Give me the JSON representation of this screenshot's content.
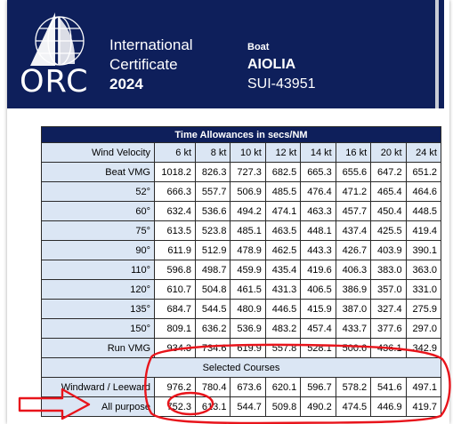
{
  "header": {
    "brand": "ORC",
    "cert_line1": "International",
    "cert_line2": "Certificate",
    "year": "2024",
    "boat_label": "Boat",
    "boat_name": "AIOLIA",
    "sail_number": "SUI-43951",
    "bg_color": "#0e1f5b"
  },
  "table": {
    "title": "Time Allowances in secs/NM",
    "wind_label": "Wind Velocity",
    "wind_speeds": [
      "6 kt",
      "8 kt",
      "10 kt",
      "12 kt",
      "14 kt",
      "16 kt",
      "20 kt",
      "24 kt"
    ],
    "rows": [
      {
        "label": "Beat VMG",
        "values": [
          "1018.2",
          "826.3",
          "727.3",
          "682.5",
          "665.3",
          "655.6",
          "647.2",
          "651.2"
        ]
      },
      {
        "label": "52°",
        "values": [
          "666.3",
          "557.7",
          "506.9",
          "485.5",
          "476.4",
          "471.2",
          "465.4",
          "464.6"
        ]
      },
      {
        "label": "60°",
        "values": [
          "632.4",
          "536.6",
          "494.2",
          "474.1",
          "463.3",
          "457.7",
          "450.4",
          "448.5"
        ]
      },
      {
        "label": "75°",
        "values": [
          "613.5",
          "523.8",
          "485.1",
          "463.5",
          "448.1",
          "437.4",
          "425.5",
          "419.4"
        ]
      },
      {
        "label": "90°",
        "values": [
          "611.9",
          "512.9",
          "478.9",
          "462.5",
          "443.3",
          "426.7",
          "403.9",
          "390.1"
        ]
      },
      {
        "label": "110°",
        "values": [
          "596.8",
          "498.7",
          "459.9",
          "435.4",
          "419.6",
          "406.3",
          "383.0",
          "363.0"
        ]
      },
      {
        "label": "120°",
        "values": [
          "610.7",
          "504.8",
          "461.5",
          "431.3",
          "406.5",
          "386.9",
          "357.0",
          "331.0"
        ]
      },
      {
        "label": "135°",
        "values": [
          "684.7",
          "544.5",
          "480.9",
          "446.5",
          "415.9",
          "387.0",
          "327.4",
          "275.9"
        ]
      },
      {
        "label": "150°",
        "values": [
          "809.1",
          "636.2",
          "536.9",
          "483.2",
          "457.4",
          "433.7",
          "377.6",
          "297.0"
        ]
      },
      {
        "label": "Run VMG",
        "values": [
          "934.3",
          "734.6",
          "619.9",
          "557.8",
          "528.1",
          "500.6",
          "436.1",
          "342.9"
        ]
      }
    ],
    "section_label": "Selected Courses",
    "courses": [
      {
        "label": "Windward / Leeward",
        "values": [
          "976.2",
          "780.4",
          "673.6",
          "620.1",
          "596.7",
          "578.2",
          "541.6",
          "497.1"
        ]
      },
      {
        "label": "All purpose",
        "values": [
          "752.3",
          "613.1",
          "544.7",
          "509.8",
          "490.2",
          "474.5",
          "446.9",
          "419.7"
        ]
      }
    ]
  },
  "annotation_color": "#e8141b"
}
